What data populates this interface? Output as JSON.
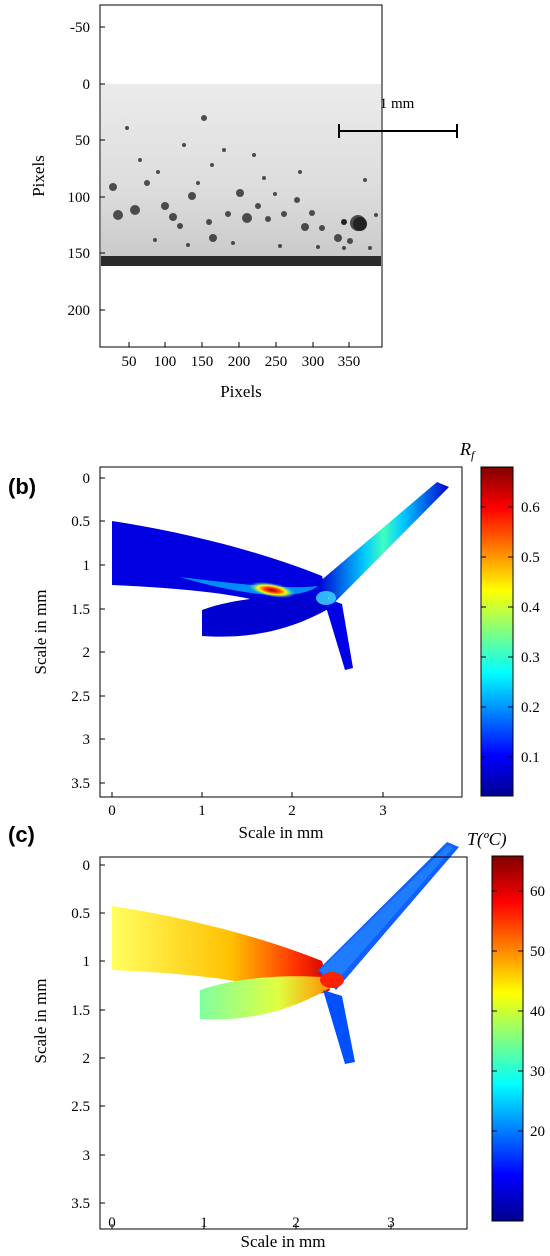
{
  "panel_a": {
    "xlabel": "Pixels",
    "ylabel": "Pixels",
    "x_ticks": [
      "50",
      "100",
      "150",
      "200",
      "250",
      "300",
      "350"
    ],
    "y_ticks": [
      "-50",
      "0",
      "50",
      "100",
      "150",
      "200"
    ],
    "scale_bar_label": "1 mm"
  },
  "panel_b": {
    "letter": "(b)",
    "xlabel": "Scale in mm",
    "ylabel": "Scale in mm",
    "x_ticks": [
      "0",
      "1",
      "2",
      "3"
    ],
    "y_ticks": [
      "0",
      "0.5",
      "1",
      "1.5",
      "2",
      "2.5",
      "3",
      "3.5"
    ],
    "colorbar_title_main": "R",
    "colorbar_title_sub": "f",
    "colorbar_ticks": [
      "0.6",
      "0.5",
      "0.4",
      "0.3",
      "0.2",
      "0.1"
    ]
  },
  "panel_c": {
    "letter": "(c)",
    "xlabel": "Scale in mm",
    "ylabel": "Scale in mm",
    "x_ticks": [
      "0",
      "1",
      "2",
      "3"
    ],
    "y_ticks": [
      "0",
      "0.5",
      "1",
      "1.5",
      "2",
      "2.5",
      "3",
      "3.5"
    ],
    "colorbar_title": "T(ºC)",
    "colorbar_ticks": [
      "60",
      "50",
      "40",
      "30",
      "20"
    ]
  },
  "colors": {
    "jet": [
      "#00008f",
      "#0000ff",
      "#0080ff",
      "#00ffff",
      "#80ff80",
      "#ffff00",
      "#ff8000",
      "#ff0000",
      "#800000"
    ]
  }
}
